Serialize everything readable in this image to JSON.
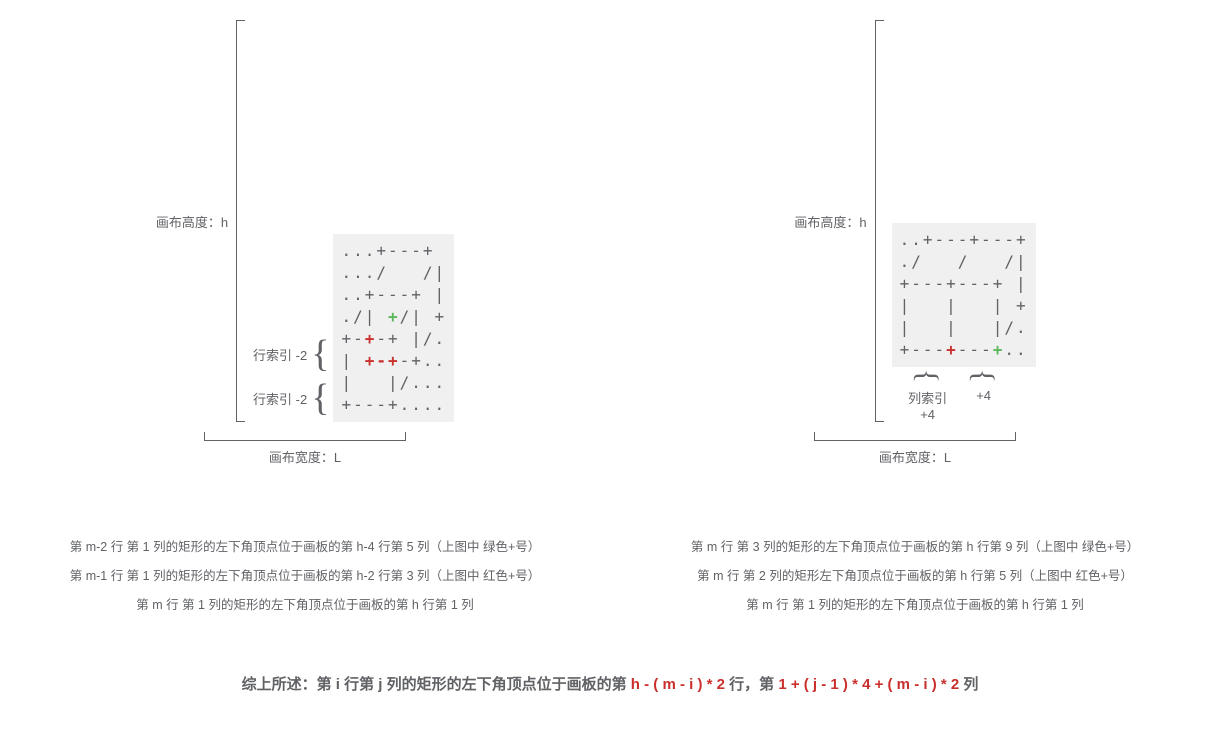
{
  "colors": {
    "text": "#606266",
    "highlight_green": "#5cb85c",
    "highlight_red": "#c9302c",
    "bg": "#ffffff",
    "art_bg": "#f0f0f0",
    "line": "#606266"
  },
  "left": {
    "h_label": "画布高度：h",
    "w_label": "画布宽度：L",
    "row_index_label_1": "行索引 -2",
    "row_index_label_2": "行索引 -2",
    "art": [
      [
        {
          "t": "...+---+",
          "c": ""
        }
      ],
      [
        {
          "t": ".../   /|",
          "c": ""
        }
      ],
      [
        {
          "t": "..+---+ |",
          "c": ""
        }
      ],
      [
        {
          "t": "./| ",
          "c": ""
        },
        {
          "t": "+",
          "c": "g"
        },
        {
          "t": "/| +",
          "c": ""
        }
      ],
      [
        {
          "t": "+-",
          "c": ""
        },
        {
          "t": "+",
          "c": "r"
        },
        {
          "t": "-+ |/.",
          "c": ""
        }
      ],
      [
        {
          "t": "| ",
          "c": ""
        },
        {
          "t": "+",
          "c": "r"
        },
        {
          "t": "-",
          "c": "r"
        },
        {
          "t": "+",
          "c": "r"
        },
        {
          "t": "-+..",
          "c": ""
        }
      ],
      [
        {
          "t": "|   |/...",
          "c": ""
        }
      ],
      [
        {
          "t": "+---+....",
          "c": ""
        }
      ]
    ],
    "desc": [
      "第 m-2 行 第 1 列的矩形的左下角顶点位于画板的第 h-4 行第 5 列（上图中 绿色+号）",
      "第 m-1 行 第 1 列的矩形的左下角顶点位于画板的第 h-2 行第 3 列（上图中 红色+号）",
      "第 m 行 第 1 列的矩形的左下角顶点位于画板的第 h 行第 1 列"
    ]
  },
  "right": {
    "h_label": "画布高度：h",
    "w_label": "画布宽度：L",
    "col_index_label_1": "列索引 +4",
    "col_index_label_2": "+4",
    "art": [
      [
        {
          "t": "..+---+---+",
          "c": ""
        }
      ],
      [
        {
          "t": "./   /   /|",
          "c": ""
        }
      ],
      [
        {
          "t": "+---+---+ |",
          "c": ""
        }
      ],
      [
        {
          "t": "|   |   | +",
          "c": ""
        }
      ],
      [
        {
          "t": "|   |   |/.",
          "c": ""
        }
      ],
      [
        {
          "t": "+---",
          "c": ""
        },
        {
          "t": "+",
          "c": "r"
        },
        {
          "t": "---",
          "c": ""
        },
        {
          "t": "+",
          "c": "g"
        },
        {
          "t": "..",
          "c": ""
        }
      ]
    ],
    "desc": [
      "第 m 行 第 3 列的矩形的左下角顶点位于画板的第 h 行第 9 列（上图中 绿色+号）",
      "第 m 行 第 2 列的矩形左下角顶点位于画板的第 h 行第 5 列（上图中 红色+号）",
      "第 m 行 第 1 列的矩形的左下角顶点位于画板的第 h 行第 1 列"
    ]
  },
  "conclusion": {
    "prefix": "综上所述：第 i 行第 j 列的矩形的左下角顶点位于画板的第 ",
    "formula1": "h - ( m - i ) * 2",
    "mid": " 行，第 ",
    "formula2": "1 + ( j - 1 ) * 4 + ( m - i ) * 2",
    "suffix": " 列"
  }
}
